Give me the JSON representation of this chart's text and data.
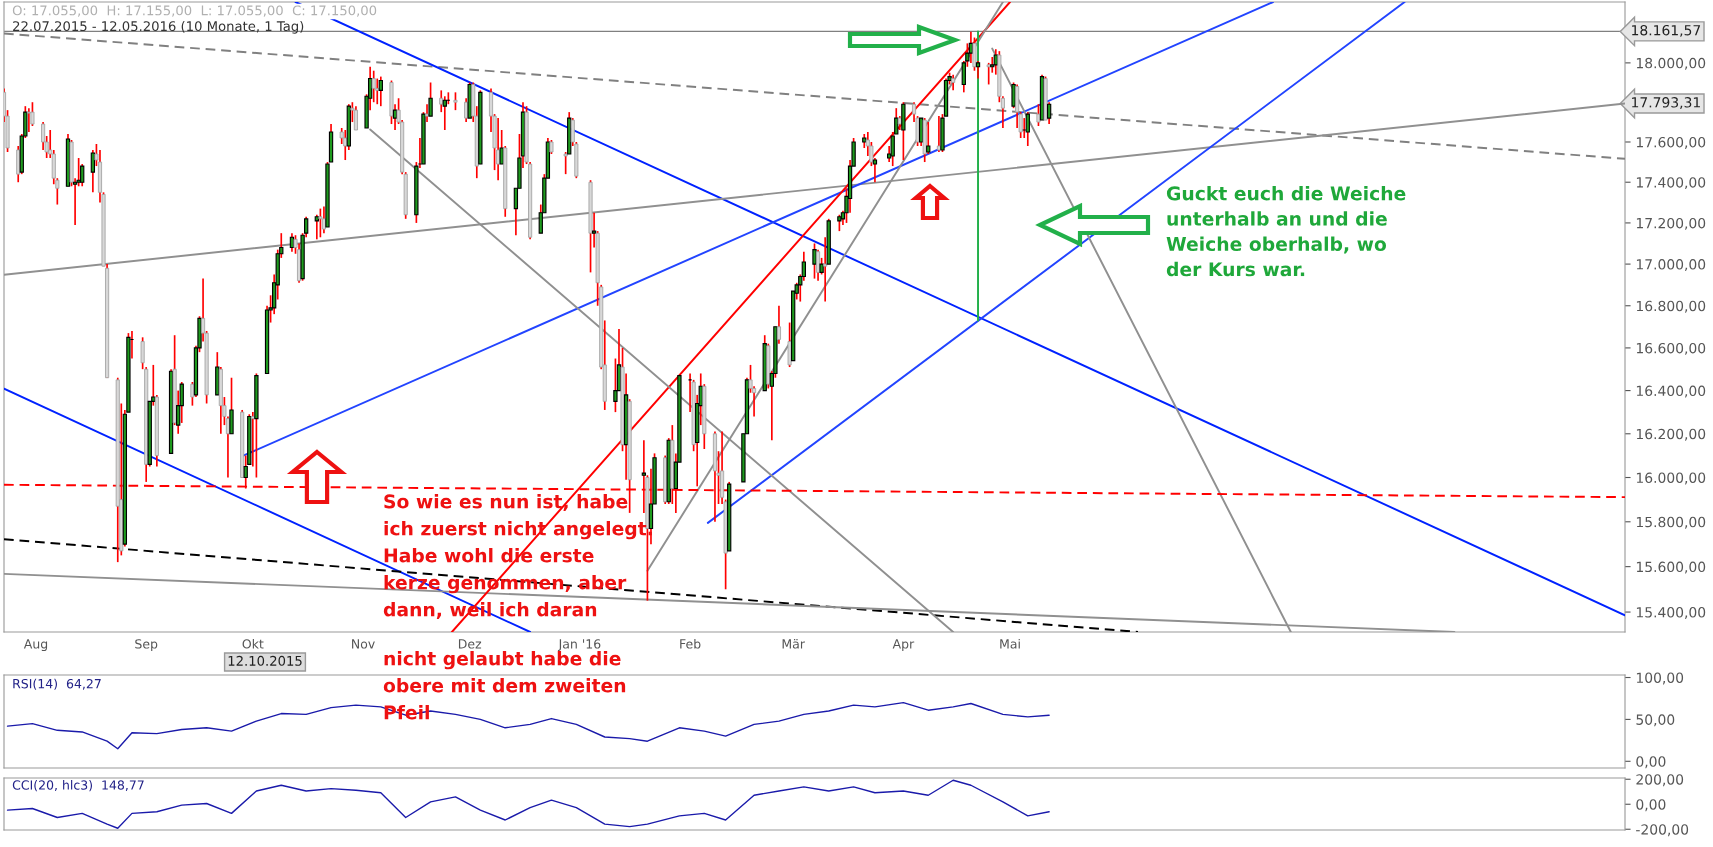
{
  "chart_data": [
    {
      "type": "candlestick",
      "title": "22.07.2015 - 12.05.2016 (10 Monate, 1 Tag)",
      "subtitle": "O: 17.055,00  H: 17.155,00  L: 17.055,00  C: 17.150,00",
      "x": [
        "2015-07-23",
        "2015-07-24",
        "2015-07-27",
        "2015-07-28",
        "2015-07-29",
        "2015-07-30",
        "2015-07-31",
        "2015-08-03",
        "2015-08-04",
        "2015-08-05",
        "2015-08-06",
        "2015-08-07",
        "2015-08-10",
        "2015-08-11",
        "2015-08-12",
        "2015-08-13",
        "2015-08-14",
        "2015-08-17",
        "2015-08-18",
        "2015-08-19",
        "2015-08-20",
        "2015-08-21",
        "2015-08-24",
        "2015-08-25",
        "2015-08-26",
        "2015-08-27",
        "2015-08-28",
        "2015-08-31",
        "2015-09-01",
        "2015-09-02",
        "2015-09-03",
        "2015-09-04",
        "2015-09-08",
        "2015-09-09",
        "2015-09-10",
        "2015-09-11",
        "2015-09-14",
        "2015-09-15",
        "2015-09-16",
        "2015-09-17",
        "2015-09-18",
        "2015-09-21",
        "2015-09-22",
        "2015-09-23",
        "2015-09-24",
        "2015-09-25",
        "2015-09-28",
        "2015-09-29",
        "2015-09-30",
        "2015-10-01",
        "2015-10-02",
        "2015-10-05",
        "2015-10-06",
        "2015-10-07",
        "2015-10-08",
        "2015-10-09",
        "2015-10-12",
        "2015-10-13",
        "2015-10-14",
        "2015-10-15",
        "2015-10-16",
        "2015-10-19",
        "2015-10-20",
        "2015-10-21",
        "2015-10-22",
        "2015-10-23",
        "2015-10-26",
        "2015-10-27",
        "2015-10-28",
        "2015-10-29",
        "2015-10-30",
        "2015-11-02",
        "2015-11-03",
        "2015-11-04",
        "2015-11-05",
        "2015-11-06",
        "2015-11-09",
        "2015-11-10",
        "2015-11-11",
        "2015-11-12",
        "2015-11-13",
        "2015-11-16",
        "2015-11-17",
        "2015-11-18",
        "2015-11-19",
        "2015-11-20",
        "2015-11-23",
        "2015-11-24",
        "2015-11-25",
        "2015-11-27",
        "2015-11-30",
        "2015-12-01",
        "2015-12-02",
        "2015-12-03",
        "2015-12-04",
        "2015-12-07",
        "2015-12-08",
        "2015-12-09",
        "2015-12-10",
        "2015-12-11",
        "2015-12-14",
        "2015-12-15",
        "2015-12-16",
        "2015-12-17",
        "2015-12-18",
        "2015-12-21",
        "2015-12-22",
        "2015-12-23",
        "2015-12-24",
        "2015-12-28",
        "2015-12-29",
        "2015-12-30",
        "2015-12-31",
        "2016-01-04",
        "2016-01-05",
        "2016-01-06",
        "2016-01-07",
        "2016-01-08",
        "2016-01-11",
        "2016-01-12",
        "2016-01-13",
        "2016-01-14",
        "2016-01-15",
        "2016-01-19",
        "2016-01-20",
        "2016-01-21",
        "2016-01-22",
        "2016-01-25",
        "2016-01-26",
        "2016-01-27",
        "2016-01-28",
        "2016-01-29",
        "2016-02-01",
        "2016-02-02",
        "2016-02-03",
        "2016-02-04",
        "2016-02-05",
        "2016-02-08",
        "2016-02-09",
        "2016-02-10",
        "2016-02-11",
        "2016-02-12",
        "2016-02-16",
        "2016-02-17",
        "2016-02-18",
        "2016-02-19",
        "2016-02-22",
        "2016-02-23",
        "2016-02-24",
        "2016-02-25",
        "2016-02-26",
        "2016-02-29",
        "2016-03-01",
        "2016-03-02",
        "2016-03-03",
        "2016-03-04",
        "2016-03-07",
        "2016-03-08",
        "2016-03-09",
        "2016-03-10",
        "2016-03-11",
        "2016-03-14",
        "2016-03-15",
        "2016-03-16",
        "2016-03-17",
        "2016-03-18",
        "2016-03-21",
        "2016-03-22",
        "2016-03-23",
        "2016-03-24",
        "2016-03-28",
        "2016-03-29",
        "2016-03-30",
        "2016-03-31",
        "2016-04-01",
        "2016-04-04",
        "2016-04-05",
        "2016-04-06",
        "2016-04-07",
        "2016-04-08",
        "2016-04-11",
        "2016-04-12",
        "2016-04-13",
        "2016-04-14",
        "2016-04-15",
        "2016-04-18",
        "2016-04-19",
        "2016-04-20",
        "2016-04-21",
        "2016-04-22",
        "2016-04-25",
        "2016-04-26",
        "2016-04-27",
        "2016-04-28",
        "2016-04-29",
        "2016-05-02",
        "2016-05-03",
        "2016-05-04",
        "2016-05-05",
        "2016-05-06",
        "2016-05-09",
        "2016-05-10",
        "2016-05-11",
        "2016-05-12"
      ],
      "ohlc": [
        [
          17850,
          17870,
          17700,
          17730
        ],
        [
          17730,
          17760,
          17550,
          17570
        ],
        [
          17560,
          17580,
          17400,
          17440
        ],
        [
          17450,
          17640,
          17440,
          17630
        ],
        [
          17630,
          17780,
          17620,
          17750
        ],
        [
          17750,
          17770,
          17650,
          17745
        ],
        [
          17750,
          17800,
          17680,
          17690
        ],
        [
          17690,
          17700,
          17560,
          17600
        ],
        [
          17600,
          17630,
          17520,
          17550
        ],
        [
          17560,
          17660,
          17520,
          17540
        ],
        [
          17540,
          17560,
          17390,
          17420
        ],
        [
          17410,
          17420,
          17290,
          17370
        ],
        [
          17380,
          17640,
          17380,
          17615
        ],
        [
          17600,
          17610,
          17380,
          17400
        ],
        [
          17390,
          17420,
          17190,
          17400
        ],
        [
          17400,
          17520,
          17380,
          17410
        ],
        [
          17400,
          17490,
          17380,
          17480
        ],
        [
          17450,
          17560,
          17350,
          17545
        ],
        [
          17540,
          17590,
          17480,
          17510
        ],
        [
          17500,
          17560,
          17300,
          17350
        ],
        [
          17340,
          17350,
          16990,
          16990
        ],
        [
          16980,
          17000,
          16460,
          16460
        ],
        [
          16450,
          16460,
          15620,
          15870
        ],
        [
          15900,
          16340,
          15650,
          15670
        ],
        [
          15700,
          16310,
          15690,
          16290
        ],
        [
          16300,
          16670,
          16300,
          16650
        ],
        [
          16640,
          16680,
          16550,
          16640
        ],
        [
          16630,
          16650,
          16500,
          16530
        ],
        [
          16500,
          16510,
          15980,
          16060
        ],
        [
          16060,
          16350,
          16050,
          16350
        ],
        [
          16350,
          16520,
          16330,
          16370
        ],
        [
          16370,
          16380,
          16050,
          16100
        ],
        [
          16110,
          16500,
          16110,
          16490
        ],
        [
          16500,
          16660,
          16240,
          16250
        ],
        [
          16240,
          16400,
          16200,
          16330
        ],
        [
          16330,
          16440,
          16250,
          16430
        ],
        [
          16430,
          16440,
          16330,
          16370
        ],
        [
          16380,
          16610,
          16370,
          16600
        ],
        [
          16600,
          16750,
          16580,
          16740
        ],
        [
          16740,
          16930,
          16630,
          16670
        ],
        [
          16670,
          16680,
          16340,
          16380
        ],
        [
          16380,
          16580,
          16380,
          16510
        ],
        [
          16500,
          16510,
          16200,
          16330
        ],
        [
          16330,
          16370,
          16240,
          16280
        ],
        [
          16270,
          16280,
          16000,
          16200
        ],
        [
          16200,
          16460,
          16200,
          16310
        ],
        [
          16300,
          16310,
          16000,
          16000
        ],
        [
          16000,
          16100,
          15950,
          16050
        ],
        [
          16060,
          16290,
          16060,
          16280
        ],
        [
          16280,
          16300,
          16050,
          16270
        ],
        [
          16270,
          16480,
          16000,
          16470
        ],
        [
          16480,
          16800,
          16480,
          16780
        ],
        [
          16780,
          16850,
          16720,
          16790
        ],
        [
          16790,
          16950,
          16760,
          16910
        ],
        [
          16900,
          17070,
          16830,
          17050
        ],
        [
          17050,
          17150,
          17030,
          17080
        ],
        [
          17080,
          17150,
          17060,
          17130
        ],
        [
          17120,
          17140,
          17050,
          17080
        ],
        [
          17070,
          17100,
          16910,
          16920
        ],
        [
          16930,
          17150,
          16920,
          17140
        ],
        [
          17150,
          17230,
          17130,
          17220
        ],
        [
          17210,
          17240,
          17120,
          17230
        ],
        [
          17230,
          17270,
          17130,
          17220
        ],
        [
          17220,
          17280,
          17150,
          17170
        ],
        [
          17180,
          17500,
          17180,
          17490
        ],
        [
          17500,
          17690,
          17500,
          17650
        ],
        [
          17650,
          17670,
          17590,
          17620
        ],
        [
          17620,
          17660,
          17510,
          17580
        ],
        [
          17580,
          17790,
          17560,
          17780
        ],
        [
          17770,
          17800,
          17700,
          17760
        ],
        [
          17760,
          17780,
          17660,
          17660
        ],
        [
          17670,
          17840,
          17670,
          17830
        ],
        [
          17820,
          17980,
          17760,
          17920
        ],
        [
          17920,
          17960,
          17800,
          17870
        ],
        [
          17870,
          17920,
          17790,
          17860
        ],
        [
          17860,
          17930,
          17780,
          17910
        ],
        [
          17900,
          17910,
          17690,
          17730
        ],
        [
          17720,
          17790,
          17660,
          17760
        ],
        [
          17760,
          17820,
          17690,
          17700
        ],
        [
          17700,
          17710,
          17440,
          17450
        ],
        [
          17440,
          17450,
          17220,
          17240
        ],
        [
          17240,
          17500,
          17200,
          17480
        ],
        [
          17490,
          17620,
          17470,
          17490
        ],
        [
          17490,
          17750,
          17490,
          17740
        ],
        [
          17740,
          17790,
          17700,
          17730
        ],
        [
          17730,
          17900,
          17730,
          17820
        ],
        [
          17820,
          17860,
          17750,
          17790
        ],
        [
          17780,
          17830,
          17660,
          17810
        ],
        [
          17810,
          17850,
          17790,
          17810
        ],
        [
          17810,
          17850,
          17760,
          17800
        ],
        [
          17800,
          17820,
          17700,
          17720
        ],
        [
          17720,
          17900,
          17720,
          17890
        ],
        [
          17890,
          17900,
          17700,
          17730
        ],
        [
          17730,
          17780,
          17420,
          17480
        ],
        [
          17490,
          17860,
          17490,
          17850
        ],
        [
          17850,
          17870,
          17650,
          17730
        ],
        [
          17730,
          17740,
          17460,
          17570
        ],
        [
          17560,
          17720,
          17410,
          17490
        ],
        [
          17490,
          17660,
          17490,
          17570
        ],
        [
          17570,
          17580,
          17230,
          17270
        ],
        [
          17270,
          17370,
          17140,
          17370
        ],
        [
          17370,
          17640,
          17370,
          17520
        ],
        [
          17530,
          17800,
          17470,
          17750
        ],
        [
          17750,
          17780,
          17490,
          17500
        ],
        [
          17490,
          17500,
          17120,
          17130
        ],
        [
          17150,
          17290,
          17150,
          17250
        ],
        [
          17250,
          17440,
          17250,
          17420
        ],
        [
          17420,
          17620,
          17420,
          17600
        ],
        [
          17600,
          17610,
          17540,
          17550
        ],
        [
          17540,
          17550,
          17440,
          17530
        ],
        [
          17540,
          17750,
          17540,
          17720
        ],
        [
          17710,
          17720,
          17580,
          17600
        ],
        [
          17590,
          17600,
          17420,
          17430
        ],
        [
          17400,
          17410,
          16960,
          17150
        ],
        [
          17150,
          17250,
          17080,
          17160
        ],
        [
          17150,
          17160,
          16800,
          16910
        ],
        [
          16890,
          16900,
          16500,
          16510
        ],
        [
          16520,
          16730,
          16310,
          16350
        ],
        [
          16350,
          16550,
          16300,
          16400
        ],
        [
          16400,
          16690,
          16400,
          16520
        ],
        [
          16510,
          16600,
          16120,
          16150
        ],
        [
          16150,
          16480,
          15990,
          16380
        ],
        [
          16350,
          16360,
          15840,
          15990
        ],
        [
          16010,
          16170,
          15840,
          16020
        ],
        [
          16000,
          16010,
          15450,
          15770
        ],
        [
          15770,
          16040,
          15700,
          15880
        ],
        [
          15880,
          16110,
          15880,
          16090
        ],
        [
          16090,
          16100,
          15880,
          15890
        ],
        [
          15890,
          16180,
          15880,
          16170
        ],
        [
          16170,
          16240,
          15880,
          15950
        ],
        [
          15950,
          16110,
          15840,
          16070
        ],
        [
          16070,
          16470,
          16070,
          16470
        ],
        [
          16450,
          16480,
          16300,
          16450
        ],
        [
          16440,
          16450,
          16120,
          16150
        ],
        [
          16160,
          16380,
          15960,
          16340
        ],
        [
          16330,
          16480,
          16240,
          16420
        ],
        [
          16420,
          16430,
          16130,
          16200
        ],
        [
          16200,
          16210,
          15800,
          16030
        ],
        [
          16020,
          16120,
          15880,
          16010
        ],
        [
          16030,
          16210,
          15880,
          15910
        ],
        [
          15890,
          15900,
          15500,
          15660
        ],
        [
          15670,
          15980,
          15670,
          15970
        ],
        [
          15980,
          16200,
          15980,
          16200
        ],
        [
          16200,
          16460,
          16200,
          16450
        ],
        [
          16450,
          16520,
          16390,
          16410
        ],
        [
          16410,
          16420,
          16280,
          16390
        ],
        [
          16400,
          16660,
          16400,
          16620
        ],
        [
          16610,
          16620,
          16410,
          16430
        ],
        [
          16420,
          16490,
          16170,
          16480
        ],
        [
          16480,
          16700,
          16460,
          16700
        ],
        [
          16700,
          16800,
          16620,
          16640
        ],
        [
          16630,
          16720,
          16510,
          16520
        ],
        [
          16540,
          16870,
          16540,
          16870
        ],
        [
          16860,
          16910,
          16830,
          16900
        ],
        [
          16900,
          16950,
          16820,
          16940
        ],
        [
          16940,
          17060,
          16920,
          17010
        ],
        [
          17000,
          17100,
          16930,
          17070
        ],
        [
          17060,
          17070,
          16920,
          16960
        ],
        [
          16960,
          17030,
          16950,
          17000
        ],
        [
          17000,
          17130,
          16820,
          16990
        ],
        [
          17000,
          17220,
          17000,
          17210
        ],
        [
          17210,
          17240,
          17160,
          17230
        ],
        [
          17220,
          17260,
          17190,
          17250
        ],
        [
          17250,
          17370,
          17200,
          17330
        ],
        [
          17320,
          17510,
          17250,
          17480
        ],
        [
          17480,
          17620,
          17480,
          17600
        ],
        [
          17600,
          17640,
          17570,
          17620
        ],
        [
          17610,
          17650,
          17530,
          17580
        ],
        [
          17580,
          17600,
          17480,
          17500
        ],
        [
          17490,
          17520,
          17400,
          17510
        ],
        [
          17520,
          17580,
          17500,
          17540
        ],
        [
          17530,
          17650,
          17480,
          17630
        ],
        [
          17640,
          17770,
          17640,
          17720
        ],
        [
          17720,
          17730,
          17660,
          17690
        ],
        [
          17660,
          17800,
          17510,
          17790
        ],
        [
          17790,
          17800,
          17700,
          17740
        ],
        [
          17720,
          17730,
          17580,
          17600
        ],
        [
          17600,
          17720,
          17580,
          17720
        ],
        [
          17710,
          17720,
          17500,
          17540
        ],
        [
          17550,
          17700,
          17540,
          17580
        ],
        [
          17580,
          17730,
          17550,
          17560
        ],
        [
          17560,
          17740,
          17550,
          17720
        ],
        [
          17730,
          17920,
          17730,
          17910
        ],
        [
          17910,
          17950,
          17890,
          17930
        ],
        [
          17920,
          17940,
          17860,
          17900
        ],
        [
          17890,
          18010,
          17850,
          18000
        ],
        [
          18010,
          18100,
          17980,
          18050
        ],
        [
          18050,
          18160,
          18000,
          18100
        ],
        [
          18100,
          18130,
          17960,
          17980
        ],
        [
          17980,
          18010,
          17920,
          18000
        ],
        [
          17990,
          18000,
          17890,
          17980
        ],
        [
          17980,
          18030,
          17950,
          17990
        ],
        [
          17990,
          18070,
          17940,
          18040
        ],
        [
          18040,
          18060,
          17800,
          17830
        ],
        [
          17820,
          17830,
          17670,
          17770
        ],
        [
          17780,
          17900,
          17770,
          17890
        ],
        [
          17880,
          17890,
          17670,
          17750
        ],
        [
          17740,
          17750,
          17620,
          17650
        ],
        [
          17660,
          17720,
          17620,
          17660
        ],
        [
          17650,
          17750,
          17580,
          17740
        ],
        [
          17740,
          17790,
          17680,
          17700
        ],
        [
          17710,
          17940,
          17710,
          17930
        ],
        [
          17920,
          17930,
          17710,
          17710
        ],
        [
          17720,
          17800,
          17690,
          17790
        ]
      ],
      "series": [
        {
          "type": "line",
          "color": "#808080",
          "line_style": "dashed",
          "x": [
            "2015-07-23",
            "2016-10-21"
          ],
          "values": [
            18151,
            17516
          ]
        },
        {
          "type": "line",
          "color": "#0022ff",
          "line_style": "solid",
          "x": [
            "2015-10-13",
            "2016-10-21"
          ],
          "values": [
            18314,
            15386
          ]
        },
        {
          "type": "line",
          "color": "#0022ff",
          "line_style": "solid",
          "x": [
            "2015-07-23",
            "2015-12-18"
          ],
          "values": [
            16409,
            15313
          ]
        },
        {
          "type": "line",
          "color": "#000000",
          "line_style": "dashed",
          "x": [
            "2015-07-23",
            "2016-06-06"
          ],
          "values": [
            15722,
            15313
          ]
        },
        {
          "type": "line",
          "color": "#909090",
          "line_style": "solid",
          "x": [
            "2015-07-23",
            "2016-09-03"
          ],
          "values": [
            15568,
            15313
          ]
        },
        {
          "type": "line",
          "color": "#909090",
          "line_style": "solid",
          "x": [
            "2015-07-23",
            "2016-10-21"
          ],
          "values": [
            16949,
            17793.31
          ]
        },
        {
          "type": "line",
          "color": "#2244ff",
          "line_style": "solid",
          "x": [
            "2015-09-28",
            "2016-07-14"
          ],
          "values": [
            16097,
            18314
          ]
        },
        {
          "type": "line",
          "color": "#2244ff",
          "line_style": "solid",
          "x": [
            "2016-02-06",
            "2016-08-20"
          ],
          "values": [
            15795,
            18314
          ]
        },
        {
          "type": "line",
          "color": "#ff0000",
          "line_style": "solid",
          "x": [
            "2015-11-26",
            "2016-05-01"
          ],
          "values": [
            15313,
            18314
          ]
        },
        {
          "type": "line",
          "color": "#909090",
          "line_style": "solid",
          "x": [
            "2015-11-03",
            "2016-04-15"
          ],
          "values": [
            17663,
            15313
          ]
        },
        {
          "type": "line",
          "color": "#909090",
          "line_style": "solid",
          "x": [
            "2016-01-20",
            "2016-04-29"
          ],
          "values": [
            15582,
            18314
          ]
        },
        {
          "type": "line",
          "color": "#909090",
          "line_style": "solid",
          "x": [
            "2016-04-26",
            "2016-07-19"
          ],
          "values": [
            18073,
            15313
          ]
        },
        {
          "type": "line",
          "color": "#ff0000",
          "line_style": "dashed",
          "x": [
            "2015-07-23",
            "2016-10-21"
          ],
          "values": [
            15967,
            15911
          ]
        },
        {
          "type": "line",
          "color": "#22b04a",
          "line_style": "solid",
          "x": [
            "2016-04-22",
            "2016-04-22"
          ],
          "values": [
            16730,
            18161.57
          ]
        }
      ],
      "ref_lines": [
        {
          "axis": "y",
          "value": 18161.57,
          "label": "18.161,57",
          "color": "#808080"
        }
      ],
      "annotations": [
        {
          "text": "17.793,31",
          "x": "2016-10-21",
          "y": 17793.31
        },
        "12.10.2015",
        "So wie es nun ist, habe\nich zuerst nicht angelegt.\nHabe wohl die erste\nkerze genommen, aber\ndann, weil ich daran\nnicht gelaubt habe die\nobere mit dem zweiten\nPfeil",
        "Guckt euch die Weiche\nunterhalb an und die\nWeiche oberhalb, wo\nder Kurs war."
      ],
      "log": true,
      "ylim": [
        15313,
        18314
      ],
      "yticks": [
        {
          "value": 15400,
          "label": "15.400,00"
        },
        {
          "value": 15600,
          "label": "15.600,00"
        },
        {
          "value": 15800,
          "label": "15.800,00"
        },
        {
          "value": 16000,
          "label": "16.000,00"
        },
        {
          "value": 16200,
          "label": "16.200,00"
        },
        {
          "value": 16400,
          "label": "16.400,00"
        },
        {
          "value": 16600,
          "label": "16.600,00"
        },
        {
          "value": 16800,
          "label": "16.800,00"
        },
        {
          "value": 17000,
          "label": "17.000,00"
        },
        {
          "value": 17200,
          "label": "17.200,00"
        },
        {
          "value": 17400,
          "label": "17.400,00"
        },
        {
          "value": 17600,
          "label": "17.600,00"
        },
        {
          "value": 18000,
          "label": "18.000,00"
        }
      ],
      "xlim": [
        "2015-07-23",
        "2016-10-21"
      ],
      "xticks": [
        {
          "value": "2015-08-01",
          "label": "Aug"
        },
        {
          "value": "2015-09-01",
          "label": "Sep"
        },
        {
          "value": "2015-10-01",
          "label": "Okt"
        },
        {
          "value": "2015-11-01",
          "label": "Nov"
        },
        {
          "value": "2015-12-01",
          "label": "Dez"
        },
        {
          "value": "2016-01-01",
          "label": "Jan '16"
        },
        {
          "value": "2016-02-01",
          "label": "Feb"
        },
        {
          "value": "2016-03-01",
          "label": "Mär"
        },
        {
          "value": "2016-04-01",
          "label": "Apr"
        },
        {
          "value": "2016-05-01",
          "label": "Mai"
        }
      ],
      "grid": false,
      "legend": false
    },
    {
      "type": "line",
      "title": "RSI(14)  64,27",
      "xlim": [
        "2015-07-23",
        "2016-10-21"
      ],
      "ylim": [
        -8,
        103
      ],
      "yticks": [
        {
          "value": 0,
          "label": "0,00"
        },
        {
          "value": 50,
          "label": "50,00"
        },
        {
          "value": 100,
          "label": "100,00"
        }
      ],
      "tick_labels": "y",
      "x": [
        "2015-07-24",
        "2015-07-31",
        "2015-08-07",
        "2015-08-14",
        "2015-08-21",
        "2015-08-24",
        "2015-08-28",
        "2015-09-04",
        "2015-09-11",
        "2015-09-18",
        "2015-09-25",
        "2015-10-02",
        "2015-10-09",
        "2015-10-16",
        "2015-10-23",
        "2015-10-30",
        "2015-11-06",
        "2015-11-13",
        "2015-11-20",
        "2015-11-27",
        "2015-12-04",
        "2015-12-11",
        "2015-12-18",
        "2015-12-24",
        "2015-12-31",
        "2016-01-08",
        "2016-01-15",
        "2016-01-20",
        "2016-01-29",
        "2016-02-05",
        "2016-02-11",
        "2016-02-19",
        "2016-02-26",
        "2016-03-04",
        "2016-03-11",
        "2016-03-18",
        "2016-03-24",
        "2016-04-01",
        "2016-04-08",
        "2016-04-15",
        "2016-04-20",
        "2016-04-29",
        "2016-05-06",
        "2016-05-12"
      ],
      "series": [
        {
          "color": "#1a1aaa",
          "values": [
            42,
            45,
            37,
            35,
            24,
            15,
            34,
            33,
            38,
            40,
            36,
            48,
            57,
            56,
            64,
            67,
            65,
            55,
            60,
            56,
            50,
            40,
            44,
            51,
            44,
            29,
            27,
            24,
            40,
            36,
            30,
            44,
            48,
            56,
            60,
            67,
            65,
            70,
            61,
            65,
            69,
            56,
            53,
            55
          ]
        }
      ]
    },
    {
      "type": "line",
      "title": "CCI(20, hlc3)  148,77",
      "xlim": [
        "2015-07-23",
        "2016-10-21"
      ],
      "ylim": [
        -206,
        210
      ],
      "yticks": [
        {
          "value": -200,
          "label": "-200,00"
        },
        {
          "value": 0,
          "label": "0,00"
        },
        {
          "value": 200,
          "label": "200,00"
        }
      ],
      "tick_labels": "y",
      "x": [
        "2015-07-24",
        "2015-07-31",
        "2015-08-07",
        "2015-08-14",
        "2015-08-21",
        "2015-08-24",
        "2015-08-28",
        "2015-09-04",
        "2015-09-11",
        "2015-09-18",
        "2015-09-25",
        "2015-10-02",
        "2015-10-09",
        "2015-10-16",
        "2015-10-23",
        "2015-10-30",
        "2015-11-06",
        "2015-11-13",
        "2015-11-20",
        "2015-11-27",
        "2015-12-04",
        "2015-12-11",
        "2015-12-18",
        "2015-12-24",
        "2015-12-31",
        "2016-01-08",
        "2016-01-15",
        "2016-01-20",
        "2016-01-29",
        "2016-02-05",
        "2016-02-11",
        "2016-02-19",
        "2016-02-26",
        "2016-03-04",
        "2016-03-11",
        "2016-03-18",
        "2016-03-24",
        "2016-04-01",
        "2016-04-08",
        "2016-04-15",
        "2016-04-20",
        "2016-04-29",
        "2016-05-06",
        "2016-05-12"
      ],
      "series": [
        {
          "color": "#1a1aaa",
          "values": [
            -47,
            -34,
            -106,
            -73,
            -159,
            -192,
            -73,
            -60,
            -7,
            6,
            -73,
            106,
            152,
            106,
            125,
            112,
            92,
            -106,
            19,
            59,
            -47,
            -126,
            -27,
            33,
            -27,
            -159,
            -179,
            -159,
            -93,
            -73,
            -126,
            72,
            106,
            139,
            106,
            139,
            92,
            106,
            72,
            192,
            152,
            19,
            -93,
            -60
          ]
        }
      ]
    }
  ]
}
